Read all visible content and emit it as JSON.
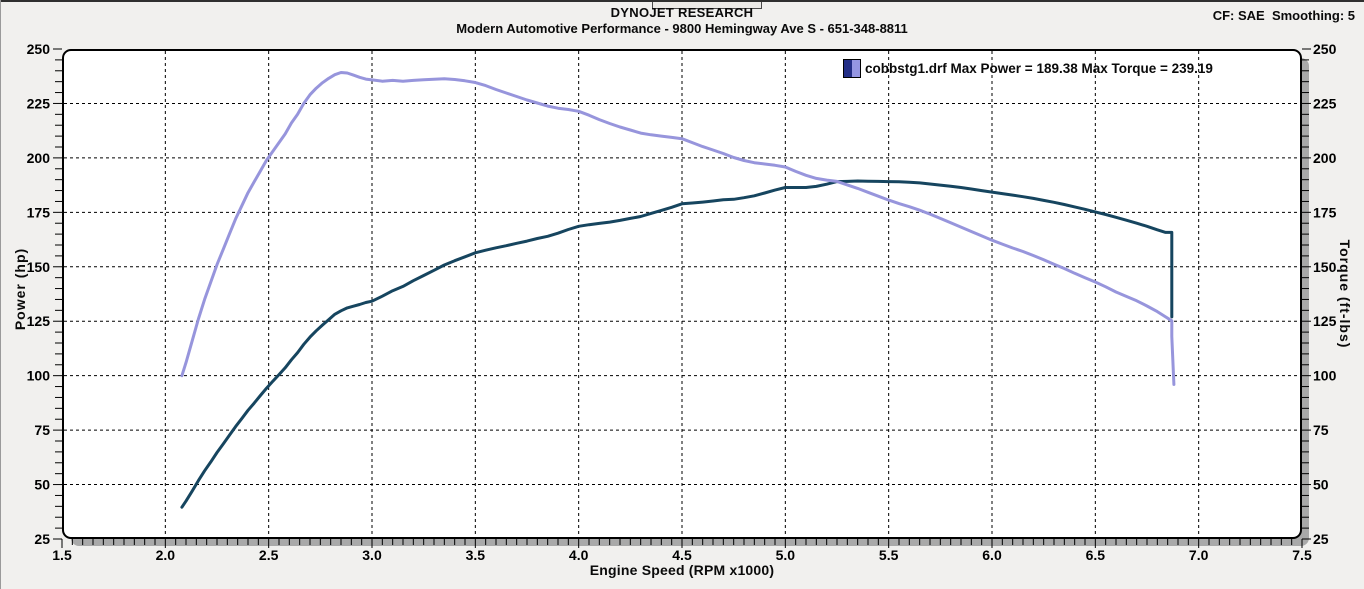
{
  "header": {
    "title": "DYNOJET RESEARCH",
    "subtitle": "Modern Automotive Performance - 9800 Hemingway Ave S - 651-348-8811",
    "correction_info": "CF: SAE  Smoothing: 5"
  },
  "legend": {
    "file": "cobbstg1.drf",
    "max_power_label": "Max Power = 189.38",
    "max_torque_label": "Max Torque = 239.19",
    "power_swatch_color": "#232e86",
    "torque_swatch_color": "#9596e2"
  },
  "colors": {
    "page_bg": "#f1f0ee",
    "plot_bg": "#ffffff",
    "shadow": "#a9a9a9",
    "grid": "#000000",
    "power_curve": "#16455f",
    "torque_curve": "#9795dc"
  },
  "chart_data": {
    "type": "line",
    "title": "",
    "xlabel": "Engine Speed (RPM x1000)",
    "ylabel_left": "Power (hp)",
    "ylabel_right": "Torque (ft-lbs)",
    "xlim": [
      1.5,
      7.5
    ],
    "ylim": [
      25,
      250
    ],
    "xticks": [
      1.5,
      2.0,
      2.5,
      3.0,
      3.5,
      4.0,
      4.5,
      5.0,
      5.5,
      6.0,
      6.5,
      7.0,
      7.5
    ],
    "yticks": [
      25,
      50,
      75,
      100,
      125,
      150,
      175,
      200,
      225,
      250
    ],
    "x_minor_step": 0.05,
    "y_minor_step": 5,
    "grid": "dashed",
    "legend_position": "top-right",
    "max_power": 189.38,
    "max_torque": 239.19,
    "series": [
      {
        "name": "power",
        "units": "hp",
        "color": "#16455f",
        "points": [
          [
            2.08,
            39.6
          ],
          [
            2.1,
            42.4
          ],
          [
            2.13,
            47.0
          ],
          [
            2.16,
            51.8
          ],
          [
            2.19,
            56.3
          ],
          [
            2.22,
            60.4
          ],
          [
            2.25,
            64.7
          ],
          [
            2.28,
            68.6
          ],
          [
            2.31,
            72.6
          ],
          [
            2.34,
            76.6
          ],
          [
            2.37,
            80.3
          ],
          [
            2.4,
            84.1
          ],
          [
            2.43,
            87.4
          ],
          [
            2.46,
            90.9
          ],
          [
            2.49,
            94.3
          ],
          [
            2.52,
            97.4
          ],
          [
            2.55,
            100.5
          ],
          [
            2.58,
            103.6
          ],
          [
            2.61,
            107.3
          ],
          [
            2.64,
            110.6
          ],
          [
            2.67,
            114.4
          ],
          [
            2.7,
            117.7
          ],
          [
            2.73,
            120.6
          ],
          [
            2.76,
            123.2
          ],
          [
            2.79,
            125.7
          ],
          [
            2.82,
            128.2
          ],
          [
            2.85,
            129.8
          ],
          [
            2.88,
            131.1
          ],
          [
            2.91,
            131.9
          ],
          [
            2.94,
            132.7
          ],
          [
            2.97,
            133.6
          ],
          [
            3.0,
            134.2
          ],
          [
            3.05,
            136.5
          ],
          [
            3.1,
            139.0
          ],
          [
            3.15,
            141.0
          ],
          [
            3.2,
            143.6
          ],
          [
            3.25,
            146.0
          ],
          [
            3.3,
            148.4
          ],
          [
            3.35,
            150.8
          ],
          [
            3.4,
            152.8
          ],
          [
            3.45,
            154.6
          ],
          [
            3.5,
            156.4
          ],
          [
            3.55,
            157.6
          ],
          [
            3.6,
            158.7
          ],
          [
            3.65,
            159.7
          ],
          [
            3.7,
            160.8
          ],
          [
            3.75,
            161.8
          ],
          [
            3.8,
            163.0
          ],
          [
            3.85,
            164.0
          ],
          [
            3.9,
            165.4
          ],
          [
            3.95,
            167.1
          ],
          [
            4.0,
            168.6
          ],
          [
            4.05,
            169.3
          ],
          [
            4.1,
            169.9
          ],
          [
            4.15,
            170.5
          ],
          [
            4.2,
            171.3
          ],
          [
            4.25,
            172.2
          ],
          [
            4.3,
            173.1
          ],
          [
            4.35,
            174.5
          ],
          [
            4.4,
            175.9
          ],
          [
            4.45,
            177.3
          ],
          [
            4.5,
            178.9
          ],
          [
            4.55,
            179.3
          ],
          [
            4.6,
            179.7
          ],
          [
            4.65,
            180.2
          ],
          [
            4.7,
            180.8
          ],
          [
            4.75,
            181.0
          ],
          [
            4.8,
            181.7
          ],
          [
            4.85,
            182.6
          ],
          [
            4.9,
            183.9
          ],
          [
            4.95,
            185.2
          ],
          [
            5.0,
            186.4
          ],
          [
            5.05,
            186.4
          ],
          [
            5.1,
            186.4
          ],
          [
            5.15,
            186.9
          ],
          [
            5.2,
            187.9
          ],
          [
            5.25,
            189.1
          ],
          [
            5.3,
            189.2
          ],
          [
            5.35,
            189.38
          ],
          [
            5.4,
            189.3
          ],
          [
            5.45,
            189.2
          ],
          [
            5.5,
            189.1
          ],
          [
            5.55,
            189.0
          ],
          [
            5.6,
            188.8
          ],
          [
            5.65,
            188.5
          ],
          [
            5.7,
            188.0
          ],
          [
            5.75,
            187.5
          ],
          [
            5.8,
            187.0
          ],
          [
            5.85,
            186.4
          ],
          [
            5.9,
            185.7
          ],
          [
            5.95,
            185.0
          ],
          [
            6.0,
            184.3
          ],
          [
            6.05,
            183.6
          ],
          [
            6.1,
            182.9
          ],
          [
            6.15,
            182.2
          ],
          [
            6.2,
            181.4
          ],
          [
            6.25,
            180.5
          ],
          [
            6.3,
            179.6
          ],
          [
            6.35,
            178.6
          ],
          [
            6.4,
            177.5
          ],
          [
            6.45,
            176.4
          ],
          [
            6.5,
            175.2
          ],
          [
            6.55,
            174.0
          ],
          [
            6.6,
            172.7
          ],
          [
            6.65,
            171.4
          ],
          [
            6.7,
            170.0
          ],
          [
            6.75,
            168.6
          ],
          [
            6.8,
            167.0
          ],
          [
            6.84,
            165.8
          ],
          [
            6.87,
            165.8
          ],
          [
            6.87,
            127.0
          ]
        ]
      },
      {
        "name": "torque",
        "units": "ft-lbs",
        "color": "#9795dc",
        "points": [
          [
            2.08,
            100
          ],
          [
            2.1,
            106
          ],
          [
            2.13,
            116
          ],
          [
            2.16,
            126
          ],
          [
            2.19,
            135
          ],
          [
            2.22,
            143
          ],
          [
            2.25,
            151
          ],
          [
            2.28,
            158
          ],
          [
            2.31,
            165
          ],
          [
            2.34,
            172
          ],
          [
            2.37,
            178
          ],
          [
            2.4,
            184
          ],
          [
            2.43,
            189
          ],
          [
            2.46,
            194
          ],
          [
            2.49,
            199
          ],
          [
            2.52,
            203
          ],
          [
            2.55,
            207
          ],
          [
            2.58,
            211
          ],
          [
            2.61,
            216
          ],
          [
            2.64,
            220
          ],
          [
            2.67,
            225
          ],
          [
            2.7,
            229
          ],
          [
            2.73,
            232
          ],
          [
            2.76,
            234.5
          ],
          [
            2.79,
            236.5
          ],
          [
            2.82,
            238.2
          ],
          [
            2.85,
            239.19
          ],
          [
            2.88,
            239
          ],
          [
            2.91,
            238
          ],
          [
            2.94,
            237
          ],
          [
            2.97,
            236.2
          ],
          [
            3.0,
            235.8
          ],
          [
            3.05,
            235.2
          ],
          [
            3.1,
            235.6
          ],
          [
            3.15,
            235.2
          ],
          [
            3.2,
            235.6
          ],
          [
            3.25,
            235.9
          ],
          [
            3.3,
            236.1
          ],
          [
            3.35,
            236.3
          ],
          [
            3.4,
            236
          ],
          [
            3.45,
            235.4
          ],
          [
            3.5,
            234.6
          ],
          [
            3.55,
            233.2
          ],
          [
            3.6,
            231.4
          ],
          [
            3.65,
            229.8
          ],
          [
            3.7,
            228.2
          ],
          [
            3.75,
            226.6
          ],
          [
            3.8,
            225.2
          ],
          [
            3.85,
            223.8
          ],
          [
            3.9,
            222.8
          ],
          [
            3.95,
            222.2
          ],
          [
            4.0,
            221.4
          ],
          [
            4.05,
            219.6
          ],
          [
            4.1,
            217.6
          ],
          [
            4.15,
            215.8
          ],
          [
            4.2,
            214.2
          ],
          [
            4.25,
            212.8
          ],
          [
            4.3,
            211.4
          ],
          [
            4.35,
            210.6
          ],
          [
            4.4,
            210
          ],
          [
            4.45,
            209.4
          ],
          [
            4.5,
            208.8
          ],
          [
            4.55,
            207
          ],
          [
            4.6,
            205.2
          ],
          [
            4.65,
            203.6
          ],
          [
            4.7,
            202
          ],
          [
            4.75,
            200.2
          ],
          [
            4.8,
            198.8
          ],
          [
            4.85,
            197.8
          ],
          [
            4.9,
            197.2
          ],
          [
            4.95,
            196.6
          ],
          [
            5.0,
            195.8
          ],
          [
            5.05,
            193.8
          ],
          [
            5.1,
            192
          ],
          [
            5.15,
            190.6
          ],
          [
            5.2,
            189.8
          ],
          [
            5.25,
            189.2
          ],
          [
            5.3,
            187.6
          ],
          [
            5.35,
            186
          ],
          [
            5.4,
            184.2
          ],
          [
            5.45,
            182.4
          ],
          [
            5.5,
            180.6
          ],
          [
            5.55,
            179
          ],
          [
            5.6,
            177.6
          ],
          [
            5.65,
            176
          ],
          [
            5.7,
            174.2
          ],
          [
            5.75,
            172.2
          ],
          [
            5.8,
            170.2
          ],
          [
            5.85,
            168.2
          ],
          [
            5.9,
            166.2
          ],
          [
            5.95,
            164.2
          ],
          [
            6.0,
            162.2
          ],
          [
            6.05,
            160.4
          ],
          [
            6.1,
            158.6
          ],
          [
            6.15,
            157
          ],
          [
            6.2,
            155.2
          ],
          [
            6.25,
            153.2
          ],
          [
            6.3,
            151.2
          ],
          [
            6.35,
            149.2
          ],
          [
            6.4,
            147
          ],
          [
            6.45,
            145
          ],
          [
            6.5,
            143
          ],
          [
            6.55,
            140.8
          ],
          [
            6.6,
            138.4
          ],
          [
            6.65,
            136.4
          ],
          [
            6.7,
            134.4
          ],
          [
            6.75,
            132
          ],
          [
            6.8,
            129.4
          ],
          [
            6.84,
            127
          ],
          [
            6.87,
            125.2
          ],
          [
            6.87,
            118
          ],
          [
            6.88,
            96
          ]
        ]
      }
    ]
  }
}
